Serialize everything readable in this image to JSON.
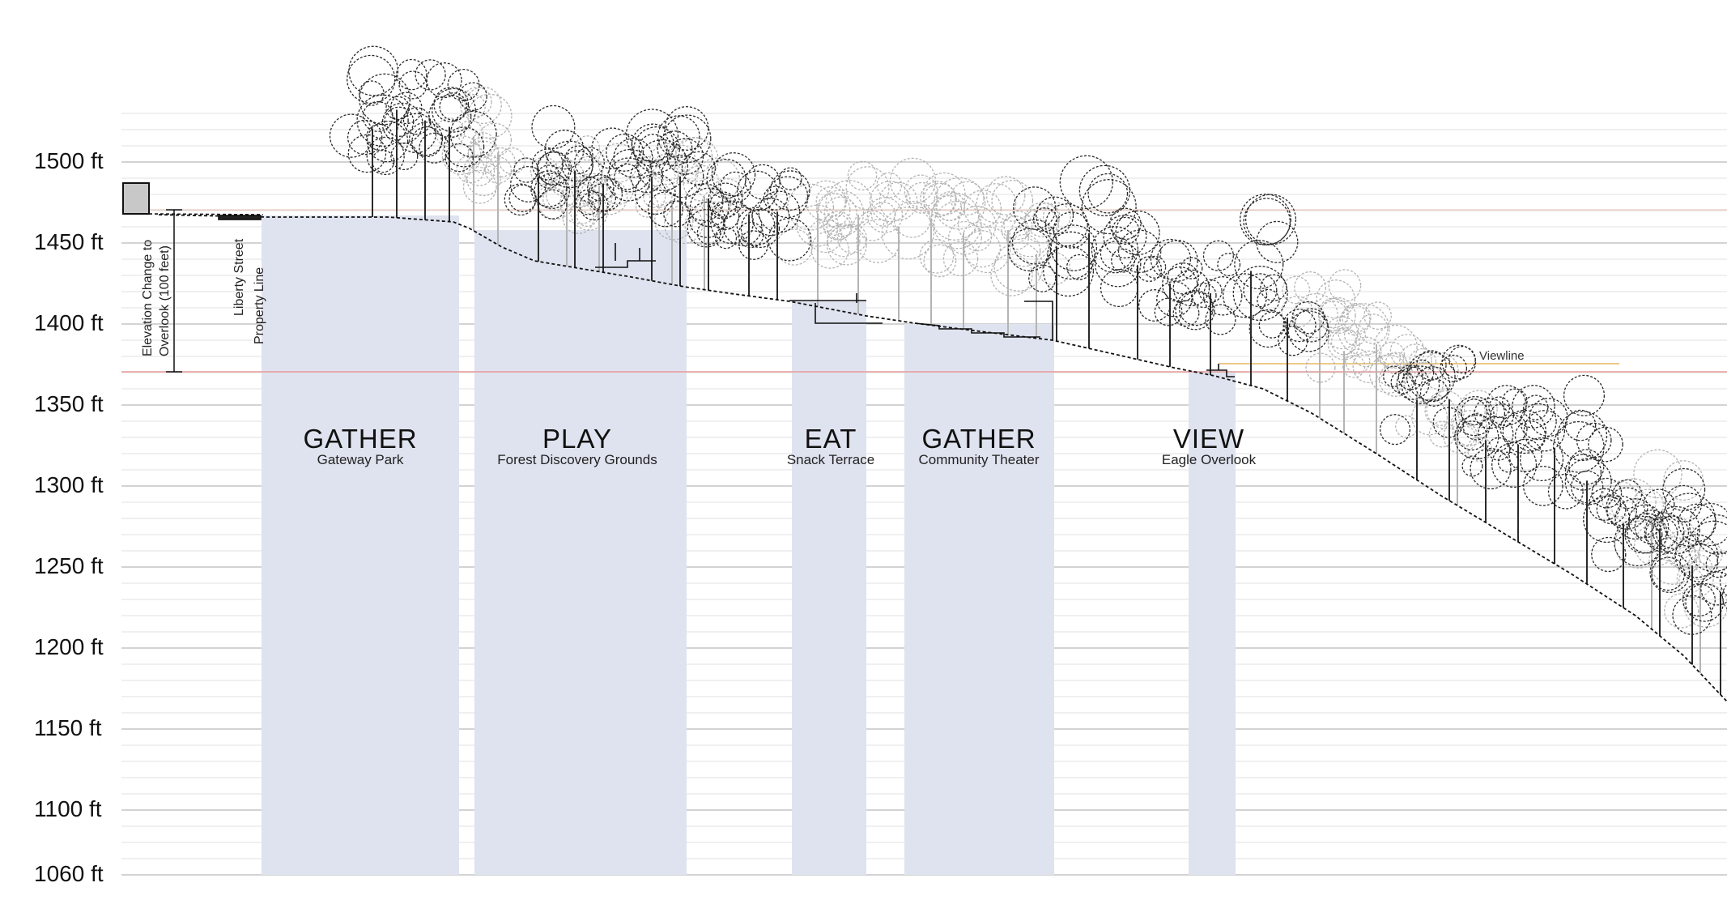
{
  "elevation_axis": {
    "unit": "ft",
    "labels": [
      "1500 ft",
      "1450 ft",
      "1400 ft",
      "1350 ft",
      "1300 ft",
      "1250 ft",
      "1200 ft",
      "1150 ft",
      "1100 ft",
      "1060 ft"
    ]
  },
  "annotations": {
    "elevation_change_line1": "Elevation Change to",
    "elevation_change_line2": "Overlook (100 feet)",
    "property_line1": "Liberty Street",
    "property_line2": "Property Line",
    "viewline": "Viewline"
  },
  "zones": [
    {
      "title": "GATHER",
      "subtitle": "Gateway Park"
    },
    {
      "title": "PLAY",
      "subtitle": "Forest Discovery Grounds"
    },
    {
      "title": "EAT",
      "subtitle": "Snack Terrace"
    },
    {
      "title": "GATHER",
      "subtitle": "Community Theater"
    },
    {
      "title": "VIEW",
      "subtitle": "Eagle Overlook"
    }
  ],
  "colors": {
    "zone_fill": "#dfe3ef",
    "grid_major": "#b9b9b9",
    "grid_minor": "#e2e2e2",
    "datum_line": "#e79a9a",
    "viewline": "#e8b860",
    "tree_dark": "#2a2a2a",
    "tree_light": "#b4b4b4"
  }
}
